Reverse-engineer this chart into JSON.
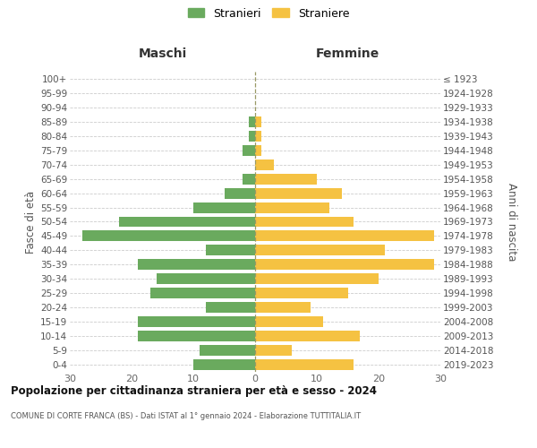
{
  "age_groups_bottom_to_top": [
    "0-4",
    "5-9",
    "10-14",
    "15-19",
    "20-24",
    "25-29",
    "30-34",
    "35-39",
    "40-44",
    "45-49",
    "50-54",
    "55-59",
    "60-64",
    "65-69",
    "70-74",
    "75-79",
    "80-84",
    "85-89",
    "90-94",
    "95-99",
    "100+"
  ],
  "birth_years_bottom_to_top": [
    "2019-2023",
    "2014-2018",
    "2009-2013",
    "2004-2008",
    "1999-2003",
    "1994-1998",
    "1989-1993",
    "1984-1988",
    "1979-1983",
    "1974-1978",
    "1969-1973",
    "1964-1968",
    "1959-1963",
    "1954-1958",
    "1949-1953",
    "1944-1948",
    "1939-1943",
    "1934-1938",
    "1929-1933",
    "1924-1928",
    "≤ 1923"
  ],
  "males_bottom_to_top": [
    10,
    9,
    19,
    19,
    8,
    17,
    16,
    19,
    8,
    28,
    22,
    10,
    5,
    2,
    0,
    2,
    1,
    1,
    0,
    0,
    0
  ],
  "females_bottom_to_top": [
    16,
    6,
    17,
    11,
    9,
    15,
    20,
    29,
    21,
    29,
    16,
    12,
    14,
    10,
    3,
    1,
    1,
    1,
    0,
    0,
    0
  ],
  "male_color": "#6aaa5e",
  "female_color": "#f5c242",
  "background_color": "#ffffff",
  "grid_color": "#cccccc",
  "title": "Popolazione per cittadinanza straniera per età e sesso - 2024",
  "subtitle": "COMUNE DI CORTE FRANCA (BS) - Dati ISTAT al 1° gennaio 2024 - Elaborazione TUTTITALIA.IT",
  "xlabel_left": "Maschi",
  "xlabel_right": "Femmine",
  "ylabel_left": "Fasce di età",
  "ylabel_right": "Anni di nascita",
  "legend_male": "Stranieri",
  "legend_female": "Straniere",
  "xlim": 30,
  "bar_height": 0.75
}
